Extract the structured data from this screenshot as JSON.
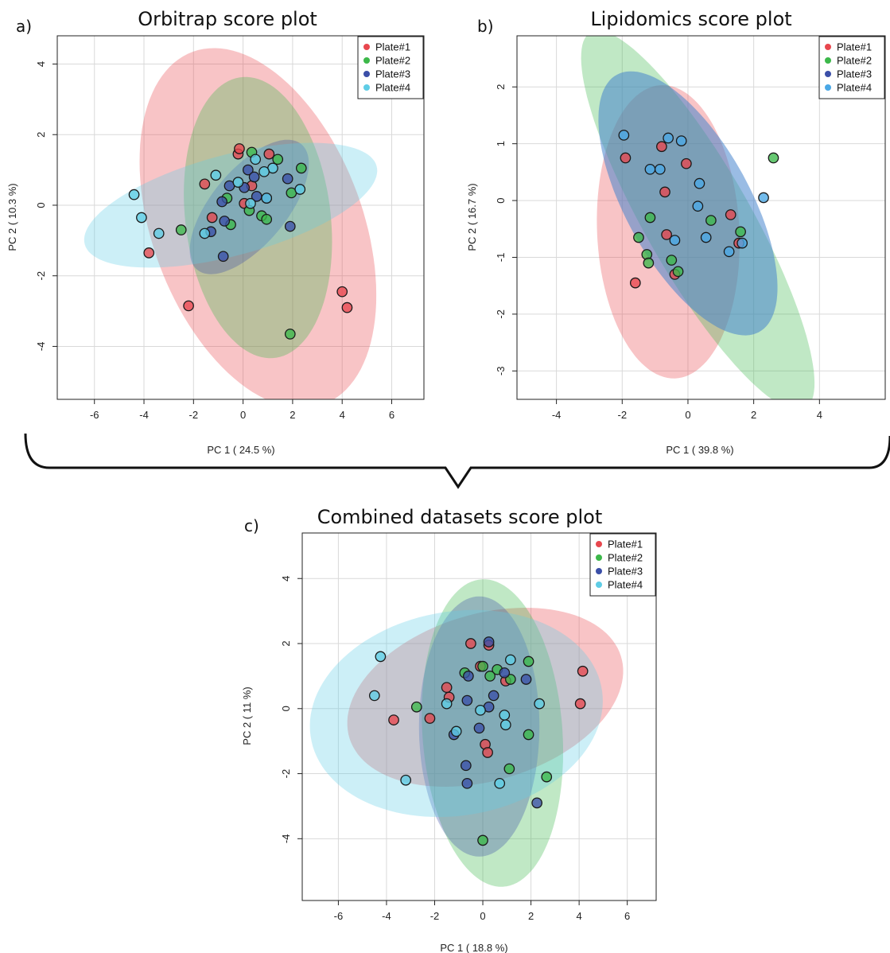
{
  "colors": {
    "plate1": "#e8474e",
    "plate2": "#3cb84a",
    "plate3": "#3b4fa8",
    "plate4": "#5fcde6"
  },
  "chart_data": [
    {
      "type": "scatter",
      "label": "a)",
      "title": "Orbitrap score plot",
      "xlabel": "PC 1 ( 24.5 %)",
      "ylabel": "PC 2 ( 10.3 %)",
      "xlim": [
        -7.5,
        7.3
      ],
      "ylim": [
        -5.5,
        4.8
      ],
      "xticks": [
        -6,
        -4,
        -2,
        0,
        2,
        4,
        6
      ],
      "yticks": [
        -4,
        -2,
        0,
        2,
        4
      ],
      "grid": true,
      "legend_position": "top-right",
      "legend": [
        "Plate#1",
        "Plate#2",
        "Plate#3",
        "Plate#4"
      ],
      "series": [
        {
          "name": "Plate#1",
          "color": "#e8474e",
          "ellipse": {
            "cx": 0.6,
            "cy": -0.65,
            "rx": 5.8,
            "ry": 3.9,
            "angle": -50
          },
          "points": [
            [
              -0.2,
              1.45
            ],
            [
              -0.15,
              1.6
            ],
            [
              1.05,
              1.45
            ],
            [
              -1.55,
              0.6
            ],
            [
              0.35,
              0.55
            ],
            [
              0.05,
              0.05
            ],
            [
              -1.25,
              -0.35
            ],
            [
              -3.8,
              -1.35
            ],
            [
              -2.2,
              -2.85
            ],
            [
              4.0,
              -2.45
            ],
            [
              4.2,
              -2.9
            ]
          ]
        },
        {
          "name": "Plate#2",
          "color": "#3cb84a",
          "ellipse": {
            "cx": 0.6,
            "cy": -0.35,
            "rx": 4.05,
            "ry": 2.9,
            "angle": -75
          },
          "points": [
            [
              0.35,
              1.5
            ],
            [
              1.4,
              1.3
            ],
            [
              2.35,
              1.05
            ],
            [
              1.95,
              0.35
            ],
            [
              -0.65,
              0.2
            ],
            [
              -0.5,
              -0.55
            ],
            [
              -2.5,
              -0.7
            ],
            [
              0.25,
              -0.15
            ],
            [
              0.75,
              -0.3
            ],
            [
              0.95,
              -0.4
            ],
            [
              1.9,
              -3.65
            ]
          ]
        },
        {
          "name": "Plate#3",
          "color": "#3b4fa8",
          "ellipse": {
            "cx": 0.25,
            "cy": -0.05,
            "rx": 2.8,
            "ry": 1.25,
            "angle": 35
          },
          "points": [
            [
              0.2,
              1.0
            ],
            [
              0.45,
              0.8
            ],
            [
              -0.55,
              0.55
            ],
            [
              0.05,
              0.5
            ],
            [
              0.55,
              0.25
            ],
            [
              1.8,
              0.75
            ],
            [
              -0.85,
              0.1
            ],
            [
              0.95,
              0.2
            ],
            [
              -0.75,
              -0.45
            ],
            [
              -1.3,
              -0.75
            ],
            [
              -0.8,
              -1.45
            ],
            [
              1.9,
              -0.6
            ]
          ]
        },
        {
          "name": "Plate#4",
          "color": "#5fcde6",
          "ellipse": {
            "cx": -0.5,
            "cy": 0.0,
            "rx": 6.0,
            "ry": 1.45,
            "angle": 10
          },
          "points": [
            [
              0.5,
              1.3
            ],
            [
              1.2,
              1.05
            ],
            [
              0.85,
              0.95
            ],
            [
              -1.1,
              0.85
            ],
            [
              -0.2,
              0.65
            ],
            [
              0.3,
              0.05
            ],
            [
              0.95,
              0.2
            ],
            [
              2.3,
              0.45
            ],
            [
              -4.4,
              0.3
            ],
            [
              -4.1,
              -0.35
            ],
            [
              -3.4,
              -0.8
            ],
            [
              -1.55,
              -0.8
            ]
          ]
        }
      ]
    },
    {
      "type": "scatter",
      "label": "b)",
      "title": "Lipidomics score plot",
      "xlabel": "PC 1 ( 39.8 %)",
      "ylabel": "PC 2 ( 16.7 %)",
      "xlim": [
        -5.2,
        6.0
      ],
      "ylim": [
        -3.5,
        2.9
      ],
      "xticks": [
        -4,
        -2,
        0,
        2,
        4
      ],
      "yticks": [
        -3,
        -2,
        -1,
        0,
        1,
        2
      ],
      "grid": true,
      "legend_position": "top-right",
      "legend": [
        "Plate#1",
        "Plate#2",
        "Plate#3",
        "Plate#4"
      ],
      "series": [
        {
          "name": "Plate#1",
          "color": "#e8474e",
          "ellipse": {
            "cx": -0.6,
            "cy": -0.55,
            "rx": 2.6,
            "ry": 2.15,
            "angle": -78
          },
          "points": [
            [
              -1.9,
              0.75
            ],
            [
              -0.8,
              0.95
            ],
            [
              -0.05,
              0.65
            ],
            [
              -0.7,
              0.15
            ],
            [
              -0.65,
              -0.6
            ],
            [
              1.3,
              -0.25
            ],
            [
              1.55,
              -0.75
            ],
            [
              -0.4,
              -1.3
            ],
            [
              -1.6,
              -1.45
            ]
          ]
        },
        {
          "name": "Plate#2",
          "color": "#3cb84a",
          "ellipse": {
            "cx": 0.3,
            "cy": -0.35,
            "rx": 4.7,
            "ry": 1.3,
            "angle": -43
          },
          "points": [
            [
              2.6,
              0.75
            ],
            [
              -1.15,
              -0.3
            ],
            [
              0.7,
              -0.35
            ],
            [
              1.6,
              -0.55
            ],
            [
              -1.5,
              -0.65
            ],
            [
              -1.25,
              -0.95
            ],
            [
              -1.2,
              -1.1
            ],
            [
              -0.5,
              -1.05
            ],
            [
              -0.3,
              -1.25
            ]
          ]
        },
        {
          "name": "Plate#3",
          "color": "#3b4fa8",
          "ellipse": {
            "cx": 0.0,
            "cy": -0.05,
            "rx": 3.25,
            "ry": 1.5,
            "angle": -38
          },
          "points": []
        },
        {
          "name": "Plate#4",
          "color": "#4aa8e6",
          "ellipse": {
            "cx": 0.0,
            "cy": -0.05,
            "rx": 3.25,
            "ry": 1.5,
            "angle": -38
          },
          "points": [
            [
              -1.95,
              1.15
            ],
            [
              -0.6,
              1.1
            ],
            [
              -0.2,
              1.05
            ],
            [
              -1.15,
              0.55
            ],
            [
              -0.85,
              0.55
            ],
            [
              0.35,
              0.3
            ],
            [
              -0.4,
              -0.7
            ],
            [
              0.3,
              -0.1
            ],
            [
              2.3,
              0.05
            ],
            [
              0.55,
              -0.65
            ],
            [
              1.25,
              -0.9
            ],
            [
              1.65,
              -0.75
            ]
          ]
        }
      ]
    },
    {
      "type": "scatter",
      "label": "c)",
      "title": "Combined datasets score plot",
      "xlabel": "PC 1 ( 18.8 %)",
      "ylabel": "PC 2 ( 11 %)",
      "xlim": [
        -7.5,
        7.2
      ],
      "ylim": [
        -5.9,
        5.4
      ],
      "xticks": [
        -6,
        -4,
        -2,
        0,
        2,
        4,
        6
      ],
      "yticks": [
        -4,
        -2,
        0,
        2,
        4
      ],
      "grid": true,
      "legend_position": "top-right",
      "legend": [
        "Plate#1",
        "Plate#2",
        "Plate#3",
        "Plate#4"
      ],
      "series": [
        {
          "name": "Plate#1",
          "color": "#e8474e",
          "ellipse": {
            "cx": 0.1,
            "cy": 0.35,
            "rx": 5.8,
            "ry": 2.6,
            "angle": 10
          },
          "points": [
            [
              -0.5,
              2.0
            ],
            [
              0.25,
              1.95
            ],
            [
              -0.1,
              1.3
            ],
            [
              -1.5,
              0.65
            ],
            [
              -1.4,
              0.35
            ],
            [
              0.95,
              0.85
            ],
            [
              4.15,
              1.15
            ],
            [
              4.05,
              0.15
            ],
            [
              -3.7,
              -0.35
            ],
            [
              -2.2,
              -0.3
            ],
            [
              0.1,
              -1.1
            ],
            [
              0.2,
              -1.35
            ]
          ]
        },
        {
          "name": "Plate#2",
          "color": "#3cb84a",
          "ellipse": {
            "cx": 0.4,
            "cy": -0.75,
            "rx": 4.75,
            "ry": 2.9,
            "angle": -83
          },
          "points": [
            [
              1.9,
              1.45
            ],
            [
              0.0,
              1.3
            ],
            [
              0.6,
              1.2
            ],
            [
              -0.75,
              1.1
            ],
            [
              0.3,
              1.0
            ],
            [
              1.15,
              0.9
            ],
            [
              -2.75,
              0.05
            ],
            [
              1.9,
              -0.8
            ],
            [
              1.1,
              -1.85
            ],
            [
              2.65,
              -2.1
            ],
            [
              0.0,
              -4.05
            ]
          ]
        },
        {
          "name": "Plate#3",
          "color": "#3b4fa8",
          "ellipse": {
            "cx": -0.15,
            "cy": -0.55,
            "rx": 4.0,
            "ry": 2.5,
            "angle": -90
          },
          "points": [
            [
              0.25,
              2.05
            ],
            [
              -0.6,
              1.0
            ],
            [
              0.9,
              1.1
            ],
            [
              1.8,
              0.9
            ],
            [
              0.45,
              0.4
            ],
            [
              -0.65,
              0.25
            ],
            [
              0.25,
              0.05
            ],
            [
              -0.15,
              -0.6
            ],
            [
              -1.2,
              -0.8
            ],
            [
              -0.7,
              -1.75
            ],
            [
              -0.65,
              -2.3
            ],
            [
              2.25,
              -2.9
            ]
          ]
        },
        {
          "name": "Plate#4",
          "color": "#5fcde6",
          "ellipse": {
            "cx": -1.1,
            "cy": -0.15,
            "rx": 6.1,
            "ry": 3.15,
            "angle": 5
          },
          "points": [
            [
              -4.25,
              1.6
            ],
            [
              1.15,
              1.5
            ],
            [
              -4.5,
              0.4
            ],
            [
              -1.5,
              0.15
            ],
            [
              2.35,
              0.15
            ],
            [
              -0.1,
              -0.05
            ],
            [
              0.9,
              -0.2
            ],
            [
              0.95,
              -0.5
            ],
            [
              -1.1,
              -0.7
            ],
            [
              -3.2,
              -2.2
            ],
            [
              0.7,
              -2.3
            ]
          ]
        }
      ]
    }
  ]
}
